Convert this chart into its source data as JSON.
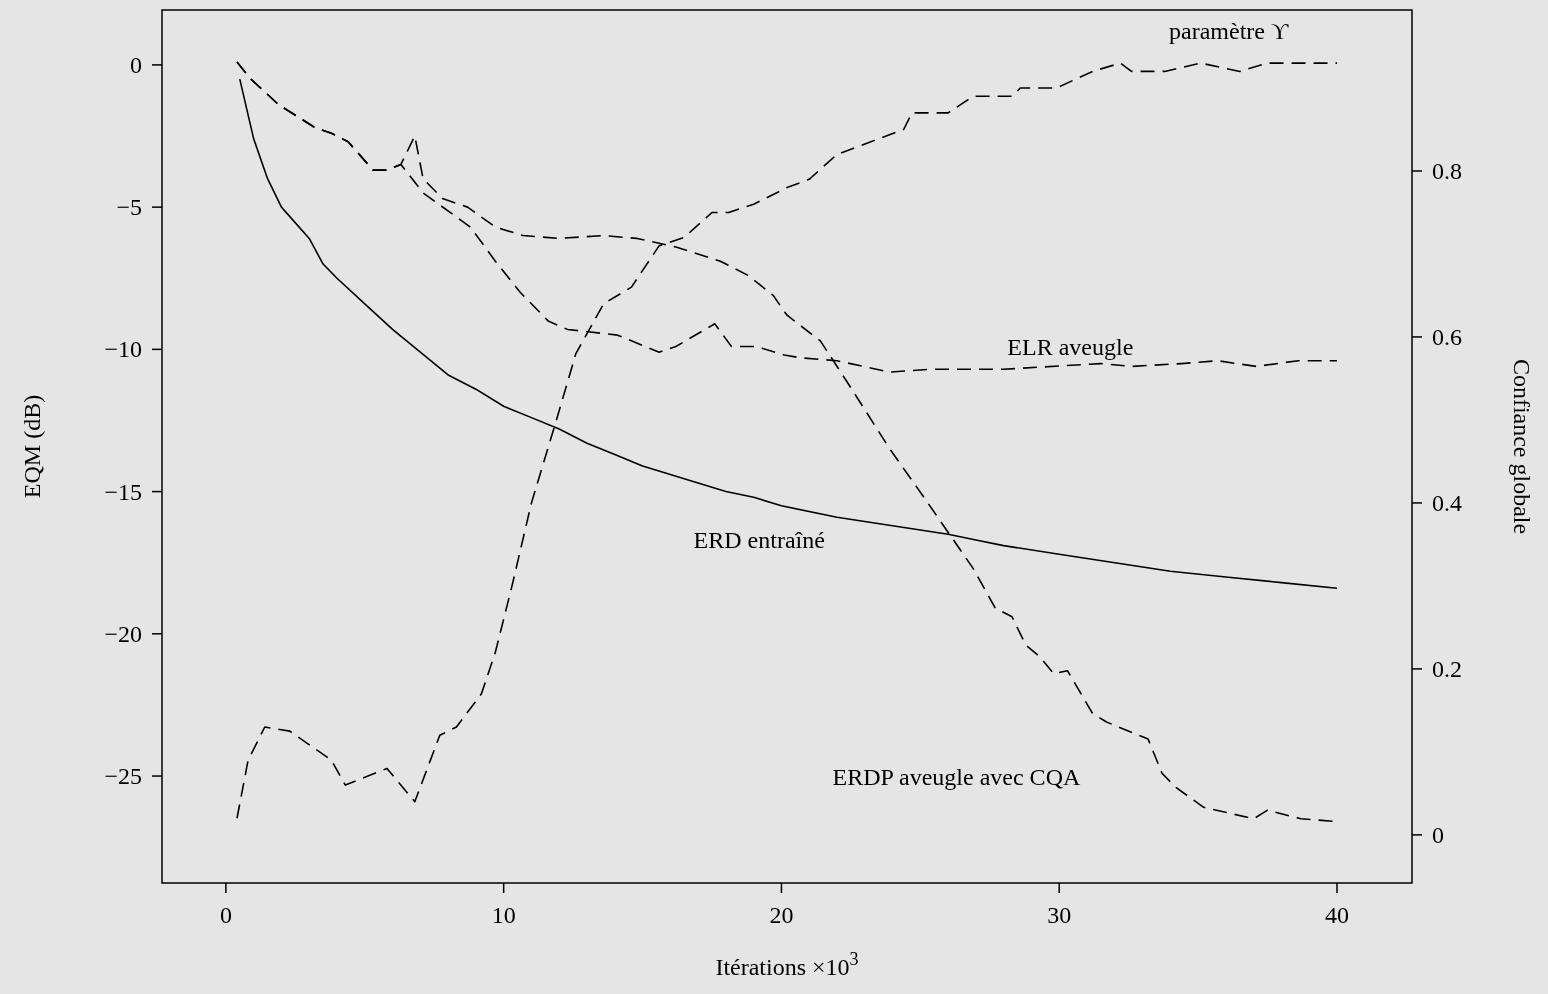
{
  "chart_data": {
    "type": "line",
    "xlabel": "Itérations ×10$^{3}$",
    "ylabel": "EQM (dB)",
    "y2label": "Confiance globale",
    "xlim": [
      -2.3,
      42.7
    ],
    "xticks": [
      0,
      10,
      20,
      30,
      40
    ],
    "ylim": [
      -28.76,
      1.93
    ],
    "yticks": [
      {
        "value": -25,
        "label": "−25"
      },
      {
        "value": -20,
        "label": "−20"
      },
      {
        "value": -15,
        "label": "−15"
      },
      {
        "value": -10,
        "label": "−10"
      },
      {
        "value": -5,
        "label": "−5"
      },
      0
    ],
    "y2lim": [
      -0.058,
      0.994
    ],
    "y2ticks": [
      0,
      0.2,
      0.4,
      0.6,
      0.8
    ],
    "grid": false,
    "legend": false,
    "marker": "none",
    "series": [
      {
        "name": "ERD entraîné",
        "color": "#000000",
        "line_style": "solid",
        "x": [
          0.5,
          1,
          1.5,
          2,
          3,
          3.5,
          4,
          5,
          6,
          7,
          8,
          9,
          10,
          11,
          12,
          13,
          14,
          15,
          16,
          17,
          18,
          19,
          20,
          22,
          24,
          26,
          27,
          28,
          30,
          32,
          34,
          36,
          38,
          40
        ],
        "values": [
          -0.5,
          -2.6,
          -4,
          -5,
          -6.1,
          -7,
          -7.5,
          -8.4,
          -9.3,
          -10.1,
          -10.9,
          -11.4,
          -12,
          -12.4,
          -12.8,
          -13.3,
          -13.7,
          -14.1,
          -14.4,
          -14.7,
          -15,
          -15.2,
          -15.5,
          -15.9,
          -16.2,
          -16.5,
          -16.7,
          -16.9,
          -17.2,
          -17.5,
          -17.8,
          -18,
          -18.2,
          -18.4
        ]
      },
      {
        "name": "ELR aveugle",
        "color": "#000000",
        "line_style": "dashed",
        "x": [
          0.4,
          0.9,
          1.9,
          3.2,
          3.8,
          4.4,
          5.3,
          5.8,
          6.3,
          7.1,
          8.8,
          9.7,
          10.6,
          11.6,
          12.3,
          14.1,
          15.6,
          16.2,
          17.6,
          18.2,
          19.1,
          20.1,
          20.7,
          22,
          23.9,
          25.4,
          26.9,
          28,
          31.5,
          32.6,
          34.4,
          35.7,
          37.1,
          38.6,
          40
        ],
        "values": [
          0.1,
          -0.5,
          -1.4,
          -2.2,
          -2.4,
          -2.7,
          -3.7,
          -3.7,
          -3.5,
          -4.5,
          -5.7,
          -6.9,
          -8,
          -9,
          -9.3,
          -9.5,
          -10.1,
          -9.9,
          -9.1,
          -9.9,
          -9.9,
          -10.2,
          -10.3,
          -10.4,
          -10.8,
          -10.7,
          -10.7,
          -10.7,
          -10.5,
          -10.6,
          -10.5,
          -10.4,
          -10.6,
          -10.4,
          -10.4
        ]
      },
      {
        "name": "ERDP aveugle avec CQA",
        "color": "#000000",
        "line_style": "dashed",
        "x": [
          0.4,
          0.9,
          1.9,
          3.2,
          3.8,
          4.4,
          5.3,
          5.8,
          6.3,
          6.8,
          7.1,
          7.8,
          8.7,
          9.7,
          10.7,
          12,
          13.6,
          14.8,
          16.2,
          17.8,
          18.8,
          19.7,
          20.2,
          21.4,
          22.4,
          23.9,
          25.2,
          26.9,
          27.7,
          28.3,
          28.8,
          29.3,
          29.8,
          30.3,
          31.2,
          31.7,
          33.2,
          33.7,
          34.2,
          35.2,
          37,
          37.5,
          38.7,
          40
        ],
        "values": [
          0.1,
          -0.5,
          -1.4,
          -2.2,
          -2.4,
          -2.7,
          -3.7,
          -3.7,
          -3.5,
          -2.5,
          -4,
          -4.7,
          -5,
          -5.7,
          -6,
          -6.1,
          -6,
          -6.1,
          -6.4,
          -6.9,
          -7.4,
          -8.1,
          -8.8,
          -9.7,
          -11.2,
          -13.5,
          -15.3,
          -17.7,
          -19.1,
          -19.4,
          -20.4,
          -20.8,
          -21.4,
          -21.3,
          -22.8,
          -23.1,
          -23.7,
          -24.9,
          -25.4,
          -26.1,
          -26.5,
          -26.2,
          -26.5,
          -26.6
        ]
      },
      {
        "name": "paramètre ϒ",
        "color": "#000000",
        "line_style": "dashed",
        "axis": "y2",
        "x": [
          0.4,
          0.8,
          1.4,
          2.3,
          3.8,
          4.3,
          5.8,
          6.8,
          7.7,
          8.3,
          9.2,
          9.7,
          10.3,
          11,
          11.9,
          12.6,
          13.6,
          14.6,
          15.6,
          16.5,
          17.5,
          18.1,
          19,
          20.2,
          21,
          22,
          23.6,
          24.4,
          24.7,
          26,
          26.9,
          28.3,
          28.6,
          29.9,
          31.2,
          32.2,
          32.6,
          33.8,
          35.1,
          36.5,
          37.5,
          40
        ],
        "values": [
          0.02,
          0.09,
          0.13,
          0.125,
          0.09,
          0.06,
          0.08,
          0.04,
          0.12,
          0.13,
          0.17,
          0.22,
          0.3,
          0.4,
          0.5,
          0.58,
          0.64,
          0.66,
          0.71,
          0.72,
          0.75,
          0.75,
          0.76,
          0.78,
          0.79,
          0.82,
          0.84,
          0.85,
          0.87,
          0.87,
          0.89,
          0.89,
          0.9,
          0.9,
          0.92,
          0.93,
          0.92,
          0.92,
          0.93,
          0.92,
          0.93,
          0.93
        ]
      }
    ]
  }
}
